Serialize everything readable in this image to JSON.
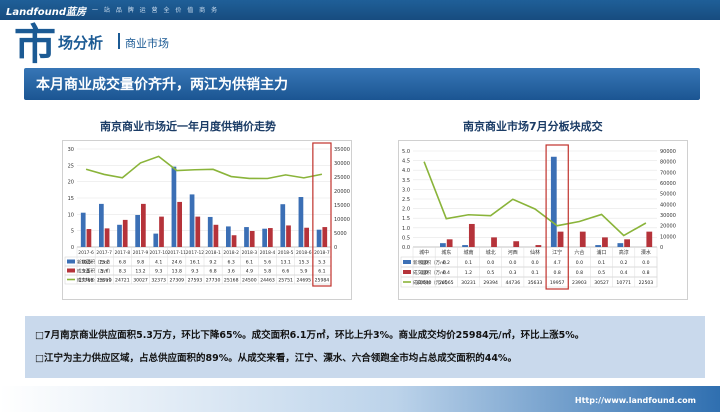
{
  "header": {
    "brand": "Landfound蓝房",
    "slogan": "一 站 品 牌 运 营 全 价 值 商 务",
    "big_char": "市",
    "section_title": "场分析",
    "section_sub": "商业市场"
  },
  "banner": {
    "text": "本月商业成交量价齐升，两江为供销主力"
  },
  "colors": {
    "supply": "#3b6fb5",
    "deal": "#b5333a",
    "price": "#8ab43a",
    "highlight": "#c0312b"
  },
  "chart_data": [
    {
      "type": "bar",
      "title": "南京商业市场近一年月度供销价走势",
      "categories": [
        "2017-6",
        "2017-7",
        "2017-8",
        "2017-9",
        "2017-10",
        "2017-11",
        "2017-12",
        "2018-1",
        "2018-2",
        "2018-3",
        "2018-4",
        "2018-5",
        "2018-6",
        "2018-7"
      ],
      "yticks": [
        "0",
        "5",
        "10",
        "15",
        "20",
        "25",
        "30"
      ],
      "y2ticks": [
        "0",
        "5000",
        "10000",
        "15000",
        "20000",
        "25000",
        "30000",
        "35000"
      ],
      "ylim": [
        0,
        30
      ],
      "y2lim": [
        0,
        35000
      ],
      "series": [
        {
          "name": "新增面积（万㎡）",
          "values": [
            10.5,
            13.2,
            6.8,
            9.8,
            4.1,
            24.6,
            16.1,
            9.2,
            6.3,
            6.1,
            5.6,
            13.1,
            15.3,
            5.3
          ]
        },
        {
          "name": "成交面积（万㎡）",
          "values": [
            5.5,
            5.7,
            8.3,
            13.2,
            9.3,
            13.8,
            9.3,
            6.8,
            3.6,
            4.9,
            5.8,
            6.6,
            5.9,
            6.1
          ]
        },
        {
          "name": "成交均价（元/㎡）",
          "values": [
            27768,
            25919,
            24721,
            30027,
            32373,
            27309,
            27593,
            27730,
            25168,
            24500,
            24463,
            25751,
            24695,
            25984
          ]
        }
      ],
      "table_text": [
        [
          "10.5",
          "13.2",
          "6.8",
          "9.8",
          "4.1",
          "24.6",
          "16.1",
          "9.2",
          "6.3",
          "6.1",
          "5.6",
          "13.1",
          "15.3",
          "5.3"
        ],
        [
          "5.5",
          "5.7",
          "8.3",
          "13.2",
          "9.3",
          "13.8",
          "9.3",
          "6.8",
          "3.6",
          "4.9",
          "5.8",
          "6.6",
          "5.9",
          "6.1"
        ],
        [
          "27768",
          "25919",
          "24721",
          "30027",
          "32373",
          "27309",
          "27593",
          "27730",
          "25168",
          "24500",
          "24463",
          "25751",
          "24695",
          "25984"
        ]
      ]
    },
    {
      "type": "bar",
      "title": "南京商业市场7月分板块成交",
      "categories": [
        "城中",
        "城东",
        "城南",
        "城北",
        "河西",
        "仙林",
        "江宁",
        "六合",
        "浦口",
        "高淳",
        "溧水"
      ],
      "yticks": [
        "0.0",
        "0.5",
        "1.0",
        "1.5",
        "2.0",
        "2.5",
        "3.0",
        "3.5",
        "4.0",
        "4.5",
        "5.0"
      ],
      "y2ticks": [
        "0",
        "10000",
        "20000",
        "30000",
        "40000",
        "50000",
        "60000",
        "70000",
        "80000",
        "90000"
      ],
      "ylim": [
        0,
        5
      ],
      "y2lim": [
        0,
        90000
      ],
      "series": [
        {
          "name": "新增面积（万㎡）",
          "values": [
            0.0,
            0.2,
            0.1,
            0.0,
            0.0,
            0.0,
            4.7,
            0.0,
            0.1,
            0.2,
            0.0
          ]
        },
        {
          "name": "成交面积（万㎡）",
          "values": [
            0.0,
            0.4,
            1.2,
            0.5,
            0.3,
            0.1,
            0.8,
            0.8,
            0.5,
            0.4,
            0.8
          ]
        },
        {
          "name": "成交均价（元/㎡）",
          "values": [
            80000,
            26565,
            30231,
            29394,
            44736,
            35633,
            19957,
            23903,
            30527,
            10771,
            22503
          ]
        }
      ],
      "table_text": [
        [
          "0.0",
          "0.2",
          "0.1",
          "0.0",
          "0.0",
          "0.0",
          "4.7",
          "0.0",
          "0.1",
          "0.2",
          "0.0"
        ],
        [
          "0.0",
          "0.4",
          "1.2",
          "0.5",
          "0.3",
          "0.1",
          "0.8",
          "0.8",
          "0.5",
          "0.4",
          "0.8"
        ],
        [
          "80000",
          "26565",
          "30231",
          "29394",
          "44736",
          "35633",
          "19957",
          "23903",
          "30527",
          "10771",
          "22503"
        ]
      ]
    }
  ],
  "summary": {
    "line1": "□7月南京商业供应面积5.3万方，环比下降65%。成交面积6.1万㎡，环比上升3%。商业成交均价25984元/㎡，环比上涨5%。",
    "line2": "□江宁为主力供应区域，占总供应面积的89%。从成交来看，江宁、溧水、六合领跑全市均占总成交面积的44%。"
  },
  "footer": {
    "url": "Http://www.landfound.com"
  }
}
